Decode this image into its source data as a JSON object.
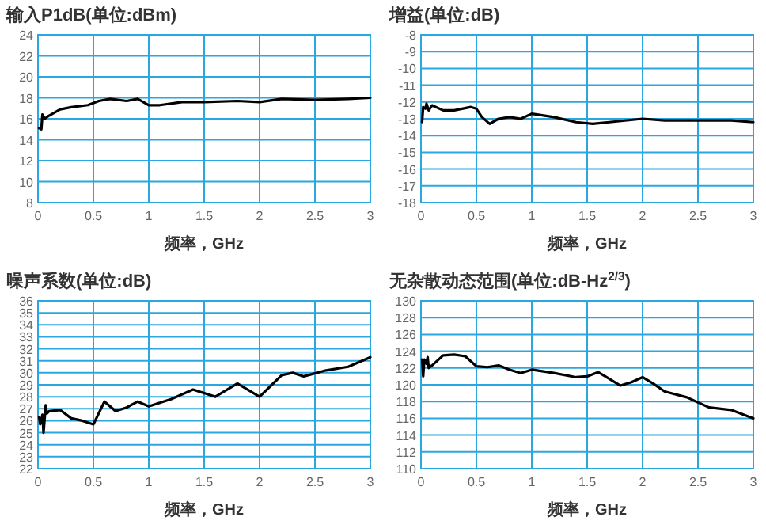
{
  "chart_data": [
    {
      "type": "line",
      "title": "输入P1dB(单位:dBm)",
      "xlabel": "频率，GHz",
      "xlim": [
        0,
        3
      ],
      "xticks": [
        0,
        0.5,
        1,
        1.5,
        2,
        2.5,
        3
      ],
      "ylim": [
        8,
        24
      ],
      "yticks": [
        8,
        10,
        12,
        14,
        16,
        18,
        20,
        22,
        24
      ],
      "grid": true,
      "series": [
        {
          "color": "#000000",
          "x": [
            0.01,
            0.03,
            0.04,
            0.06,
            0.1,
            0.2,
            0.3,
            0.45,
            0.55,
            0.65,
            0.8,
            0.9,
            1.0,
            1.1,
            1.3,
            1.5,
            1.8,
            2.0,
            2.2,
            2.5,
            2.8,
            3.0
          ],
          "values": [
            15.1,
            15.0,
            16.4,
            16.0,
            16.3,
            16.9,
            17.1,
            17.3,
            17.7,
            17.9,
            17.7,
            17.9,
            17.3,
            17.3,
            17.6,
            17.6,
            17.7,
            17.6,
            17.9,
            17.8,
            17.9,
            18.0
          ]
        }
      ]
    },
    {
      "type": "line",
      "title": "增益(单位:dB)",
      "xlabel": "频率，GHz",
      "xlim": [
        0,
        3
      ],
      "xticks": [
        0,
        0.5,
        1,
        1.5,
        2,
        2.5,
        3
      ],
      "ylim": [
        -18,
        -8
      ],
      "yticks": [
        -18,
        -17,
        -16,
        -15,
        -14,
        -13,
        -12,
        -11,
        -10,
        -9,
        -8
      ],
      "grid": true,
      "series": [
        {
          "color": "#000000",
          "x": [
            0.01,
            0.02,
            0.04,
            0.05,
            0.07,
            0.1,
            0.2,
            0.3,
            0.45,
            0.5,
            0.55,
            0.62,
            0.7,
            0.8,
            0.9,
            1.0,
            1.2,
            1.4,
            1.55,
            1.7,
            2.0,
            2.2,
            2.5,
            2.8,
            3.0
          ],
          "values": [
            -13.2,
            -12.3,
            -12.4,
            -12.1,
            -12.5,
            -12.2,
            -12.5,
            -12.5,
            -12.3,
            -12.4,
            -12.9,
            -13.3,
            -13.0,
            -12.9,
            -13.0,
            -12.7,
            -12.9,
            -13.2,
            -13.3,
            -13.2,
            -13.0,
            -13.1,
            -13.1,
            -13.1,
            -13.2
          ]
        }
      ]
    },
    {
      "type": "line",
      "title": "噪声系数(单位:dB)",
      "xlabel": "频率，GHz",
      "xlim": [
        0,
        3
      ],
      "xticks": [
        0,
        0.5,
        1,
        1.5,
        2,
        2.5,
        3
      ],
      "ylim": [
        22,
        36
      ],
      "yticks": [
        22,
        23,
        24,
        25,
        26,
        27,
        28,
        29,
        30,
        31,
        32,
        33,
        34,
        35,
        36
      ],
      "grid": true,
      "series": [
        {
          "color": "#000000",
          "x": [
            0.01,
            0.02,
            0.04,
            0.05,
            0.07,
            0.08,
            0.1,
            0.2,
            0.3,
            0.4,
            0.5,
            0.6,
            0.7,
            0.8,
            0.9,
            1.0,
            1.2,
            1.4,
            1.5,
            1.6,
            1.8,
            2.0,
            2.1,
            2.2,
            2.3,
            2.4,
            2.6,
            2.8,
            3.0
          ],
          "values": [
            26.3,
            25.7,
            26.5,
            25.0,
            27.3,
            26.6,
            26.8,
            26.9,
            26.2,
            26.0,
            25.7,
            27.6,
            26.8,
            27.1,
            27.6,
            27.2,
            27.8,
            28.6,
            28.3,
            28.0,
            29.1,
            28.0,
            28.9,
            29.8,
            30.0,
            29.7,
            30.2,
            30.5,
            31.3
          ]
        }
      ]
    },
    {
      "type": "line",
      "title": "无杂散动态范围(单位:dB-Hz$^{2/3}$)",
      "xlabel": "频率，GHz",
      "xlim": [
        0,
        3
      ],
      "xticks": [
        0,
        0.5,
        1,
        1.5,
        2,
        2.5,
        3
      ],
      "ylim": [
        110,
        130
      ],
      "yticks": [
        110,
        112,
        114,
        116,
        118,
        120,
        122,
        124,
        126,
        128,
        130
      ],
      "grid": true,
      "series": [
        {
          "color": "#000000",
          "x": [
            0.01,
            0.02,
            0.03,
            0.05,
            0.06,
            0.07,
            0.1,
            0.2,
            0.3,
            0.4,
            0.5,
            0.6,
            0.7,
            0.8,
            0.9,
            1.0,
            1.2,
            1.4,
            1.5,
            1.6,
            1.8,
            1.9,
            2.0,
            2.1,
            2.2,
            2.4,
            2.6,
            2.8,
            3.0
          ],
          "values": [
            123,
            121,
            123,
            122.5,
            123.3,
            122,
            122.3,
            123.5,
            123.6,
            123.4,
            122.2,
            122.1,
            122.3,
            121.8,
            121.4,
            121.8,
            121.4,
            120.9,
            121.0,
            121.5,
            119.9,
            120.3,
            120.9,
            120.1,
            119.2,
            118.5,
            117.3,
            117.0,
            116.0
          ]
        }
      ]
    }
  ]
}
